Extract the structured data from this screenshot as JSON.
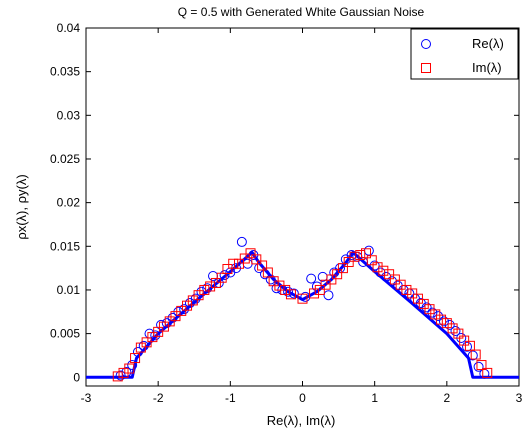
{
  "chart_data": {
    "type": "scatter",
    "title": "Q = 0.5 with Generated White Gaussian Noise",
    "xlabel": "Re(λ), Im(λ)",
    "ylabel": "ρx(λ), ρy(λ)",
    "xlim": [
      -3,
      3
    ],
    "ylim": [
      -0.001,
      0.04
    ],
    "x_ticks": [
      -3,
      -2,
      -1,
      0,
      1,
      2,
      3
    ],
    "x_tick_labels": [
      "-3",
      "-2",
      "-1",
      "0",
      "1",
      "2",
      "3"
    ],
    "y_ticks": [
      0,
      0.005,
      0.01,
      0.015,
      0.02,
      0.025,
      0.03,
      0.035,
      0.04
    ],
    "y_tick_labels": [
      "0",
      "0.005",
      "0.01",
      "0.015",
      "0.02",
      "0.025",
      "0.03",
      "0.035",
      "0.04"
    ],
    "grid": false,
    "legend_position": "top-right",
    "series": [
      {
        "name": "Re(λ)",
        "marker": "circle",
        "color": "#0000ff",
        "points": [
          [
            -2.52,
            0.0002
          ],
          [
            -2.44,
            0.0006
          ],
          [
            -2.36,
            0.0014
          ],
          [
            -2.28,
            0.0029
          ],
          [
            -2.2,
            0.0036
          ],
          [
            -2.12,
            0.005
          ],
          [
            -2.04,
            0.0048
          ],
          [
            -1.96,
            0.006
          ],
          [
            -1.88,
            0.0062
          ],
          [
            -1.8,
            0.0068
          ],
          [
            -1.72,
            0.0075
          ],
          [
            -1.64,
            0.0078
          ],
          [
            -1.56,
            0.0085
          ],
          [
            -1.48,
            0.009
          ],
          [
            -1.4,
            0.0098
          ],
          [
            -1.32,
            0.0102
          ],
          [
            -1.24,
            0.0116
          ],
          [
            -1.16,
            0.0108
          ],
          [
            -1.08,
            0.0117
          ],
          [
            -1.0,
            0.012
          ],
          [
            -0.92,
            0.0125
          ],
          [
            -0.84,
            0.0155
          ],
          [
            -0.76,
            0.013
          ],
          [
            -0.68,
            0.014
          ],
          [
            -0.6,
            0.0125
          ],
          [
            -0.52,
            0.0118
          ],
          [
            -0.44,
            0.0112
          ],
          [
            -0.36,
            0.0102
          ],
          [
            -0.28,
            0.01
          ],
          [
            -0.2,
            0.0098
          ],
          [
            -0.12,
            0.0096
          ],
          [
            0.04,
            0.0092
          ],
          [
            0.12,
            0.0113
          ],
          [
            0.2,
            0.0104
          ],
          [
            0.28,
            0.0115
          ],
          [
            0.36,
            0.0094
          ],
          [
            0.44,
            0.012
          ],
          [
            0.52,
            0.0125
          ],
          [
            0.6,
            0.0135
          ],
          [
            0.68,
            0.014
          ],
          [
            0.76,
            0.0138
          ],
          [
            0.84,
            0.0132
          ],
          [
            0.92,
            0.0145
          ],
          [
            1.0,
            0.0128
          ],
          [
            1.08,
            0.012
          ],
          [
            1.16,
            0.0115
          ],
          [
            1.24,
            0.011
          ],
          [
            1.32,
            0.0105
          ],
          [
            1.4,
            0.01
          ],
          [
            1.48,
            0.0096
          ],
          [
            1.56,
            0.009
          ],
          [
            1.64,
            0.0085
          ],
          [
            1.72,
            0.008
          ],
          [
            1.8,
            0.0074
          ],
          [
            1.88,
            0.007
          ],
          [
            1.96,
            0.0064
          ],
          [
            2.04,
            0.006
          ],
          [
            2.12,
            0.0053
          ],
          [
            2.2,
            0.0045
          ],
          [
            2.28,
            0.0035
          ],
          [
            2.36,
            0.0025
          ],
          [
            2.44,
            0.0012
          ],
          [
            2.52,
            0.0004
          ]
        ]
      },
      {
        "name": "Im(λ)",
        "marker": "square",
        "color": "#ff0000",
        "points": [
          [
            -2.56,
            0.0001
          ],
          [
            -2.48,
            0.0005
          ],
          [
            -2.4,
            0.001
          ],
          [
            -2.32,
            0.0022
          ],
          [
            -2.24,
            0.0034
          ],
          [
            -2.16,
            0.004
          ],
          [
            -2.08,
            0.0046
          ],
          [
            -2.0,
            0.0052
          ],
          [
            -1.92,
            0.0058
          ],
          [
            -1.84,
            0.0064
          ],
          [
            -1.76,
            0.007
          ],
          [
            -1.68,
            0.0076
          ],
          [
            -1.6,
            0.0082
          ],
          [
            -1.52,
            0.0088
          ],
          [
            -1.44,
            0.0094
          ],
          [
            -1.36,
            0.01
          ],
          [
            -1.28,
            0.0104
          ],
          [
            -1.2,
            0.0108
          ],
          [
            -1.12,
            0.0114
          ],
          [
            -1.04,
            0.0124
          ],
          [
            -0.96,
            0.013
          ],
          [
            -0.88,
            0.013
          ],
          [
            -0.8,
            0.0136
          ],
          [
            -0.72,
            0.0142
          ],
          [
            -0.64,
            0.0135
          ],
          [
            -0.56,
            0.0128
          ],
          [
            -0.48,
            0.012
          ],
          [
            -0.4,
            0.011
          ],
          [
            -0.32,
            0.0105
          ],
          [
            -0.24,
            0.01
          ],
          [
            -0.16,
            0.0095
          ],
          [
            0.0,
            0.009
          ],
          [
            0.16,
            0.0096
          ],
          [
            0.24,
            0.01
          ],
          [
            0.32,
            0.0106
          ],
          [
            0.4,
            0.0112
          ],
          [
            0.48,
            0.0118
          ],
          [
            0.56,
            0.0125
          ],
          [
            0.64,
            0.0132
          ],
          [
            0.72,
            0.0138
          ],
          [
            0.8,
            0.014
          ],
          [
            0.88,
            0.0142
          ],
          [
            0.96,
            0.0134
          ],
          [
            1.04,
            0.0126
          ],
          [
            1.12,
            0.0122
          ],
          [
            1.2,
            0.0118
          ],
          [
            1.28,
            0.0112
          ],
          [
            1.36,
            0.0106
          ],
          [
            1.44,
            0.01
          ],
          [
            1.52,
            0.0096
          ],
          [
            1.6,
            0.009
          ],
          [
            1.68,
            0.0084
          ],
          [
            1.76,
            0.0078
          ],
          [
            1.84,
            0.0072
          ],
          [
            1.92,
            0.0066
          ],
          [
            2.0,
            0.0062
          ],
          [
            2.08,
            0.0056
          ],
          [
            2.16,
            0.005
          ],
          [
            2.24,
            0.0042
          ],
          [
            2.32,
            0.0036
          ],
          [
            2.4,
            0.0026
          ],
          [
            2.48,
            0.0014
          ],
          [
            2.56,
            0.0005
          ]
        ]
      }
    ],
    "theory_curve": {
      "color": "#0000ff",
      "style": "solid",
      "points": [
        [
          -3.0,
          0.0
        ],
        [
          -2.36,
          0.0
        ],
        [
          -2.3,
          0.0022
        ],
        [
          -2.0,
          0.005
        ],
        [
          -1.5,
          0.0086
        ],
        [
          -1.0,
          0.0121
        ],
        [
          -0.7,
          0.0143
        ],
        [
          -0.6,
          0.0131
        ],
        [
          -0.4,
          0.0112
        ],
        [
          -0.2,
          0.0098
        ],
        [
          0.0,
          0.0089
        ],
        [
          0.2,
          0.0098
        ],
        [
          0.4,
          0.0112
        ],
        [
          0.6,
          0.0131
        ],
        [
          0.7,
          0.0143
        ],
        [
          1.0,
          0.0121
        ],
        [
          1.5,
          0.0086
        ],
        [
          2.0,
          0.005
        ],
        [
          2.3,
          0.0022
        ],
        [
          2.36,
          0.0
        ],
        [
          3.0,
          0.0
        ]
      ]
    }
  }
}
